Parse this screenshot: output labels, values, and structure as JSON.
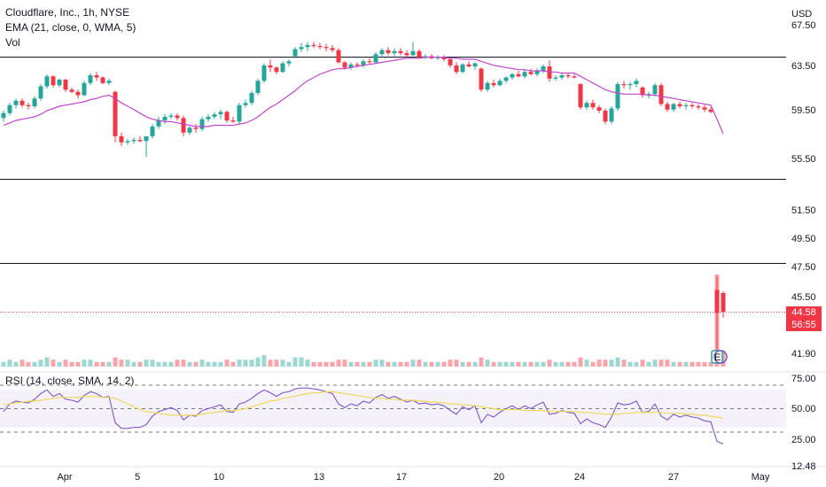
{
  "legend": {
    "title": "Cloudflare, Inc., 1h, NYSE",
    "ema": "EMA (21, close, 0, WMA, 5)",
    "vol": "Vol",
    "rsi": "RSI (14, close, SMA, 14, 2)"
  },
  "currency": "USD",
  "last_price": {
    "price": "44.58",
    "countdown": "56:55",
    "color": "#f23645"
  },
  "earnings_marker": "E",
  "colors": {
    "up": "#26a69a",
    "down": "#f23645",
    "ema": "#c147c7",
    "rsi": "#7e57c2",
    "rsi_ma": "#f0d95c",
    "rsi_band": "#ede7f6"
  },
  "chart_data": [
    {
      "type": "candlestick",
      "title": "Cloudflare, Inc., 1h, NYSE",
      "y_tick_labels": [
        "67.50",
        "63.50",
        "59.50",
        "55.50",
        "51.50",
        "49.50",
        "47.50",
        "45.50",
        "41.90"
      ],
      "x_tick_labels": [
        "Apr",
        "5",
        "10",
        "13",
        "17",
        "20",
        "24",
        "27",
        "May"
      ],
      "horizontal_lines": [
        64.5,
        54.0,
        47.8
      ],
      "ohlc": [
        [
          58.9,
          59.5,
          58.6,
          59.3
        ],
        [
          59.3,
          60.2,
          59.1,
          60.0
        ],
        [
          60.0,
          60.6,
          59.7,
          60.4
        ],
        [
          60.4,
          60.6,
          59.8,
          60.0
        ],
        [
          60.0,
          60.2,
          59.6,
          59.9
        ],
        [
          59.9,
          60.8,
          59.7,
          60.6
        ],
        [
          60.6,
          61.9,
          60.4,
          61.7
        ],
        [
          61.7,
          62.8,
          61.5,
          62.6
        ],
        [
          62.6,
          62.7,
          61.6,
          61.8
        ],
        [
          61.8,
          62.4,
          61.6,
          62.3
        ],
        [
          62.3,
          62.4,
          61.2,
          61.4
        ],
        [
          61.4,
          61.6,
          61.1,
          61.2
        ],
        [
          61.2,
          61.4,
          60.6,
          60.9
        ],
        [
          60.9,
          62.2,
          60.8,
          62.0
        ],
        [
          62.0,
          62.9,
          61.8,
          62.7
        ],
        [
          62.7,
          63.0,
          62.2,
          62.5
        ],
        [
          62.5,
          62.6,
          61.9,
          62.0
        ],
        [
          62.0,
          62.4,
          61.8,
          62.2
        ],
        [
          61.2,
          61.3,
          56.9,
          57.4
        ],
        [
          57.4,
          57.7,
          56.6,
          56.9
        ],
        [
          56.9,
          57.2,
          56.7,
          57.0
        ],
        [
          57.0,
          57.3,
          56.8,
          57.1
        ],
        [
          57.1,
          57.4,
          56.9,
          57.0
        ],
        [
          57.0,
          57.3,
          55.7,
          57.4
        ],
        [
          57.4,
          58.4,
          57.2,
          58.2
        ],
        [
          58.2,
          59.0,
          58.0,
          58.7
        ],
        [
          58.7,
          59.2,
          58.4,
          59.0
        ],
        [
          59.0,
          59.3,
          58.8,
          59.1
        ],
        [
          59.1,
          59.3,
          58.7,
          58.9
        ],
        [
          58.9,
          59.1,
          57.4,
          57.7
        ],
        [
          57.7,
          58.2,
          57.5,
          58.1
        ],
        [
          58.1,
          58.4,
          57.7,
          58.0
        ],
        [
          58.0,
          59.0,
          57.8,
          58.8
        ],
        [
          58.8,
          59.2,
          58.6,
          59.0
        ],
        [
          59.0,
          59.4,
          58.8,
          59.2
        ],
        [
          59.2,
          59.6,
          58.8,
          59.4
        ],
        [
          59.4,
          59.5,
          58.5,
          58.7
        ],
        [
          58.7,
          59.0,
          58.5,
          58.6
        ],
        [
          58.6,
          60.2,
          58.4,
          60.0
        ],
        [
          60.0,
          60.5,
          59.8,
          60.2
        ],
        [
          60.2,
          61.3,
          60.0,
          61.1
        ],
        [
          61.1,
          62.4,
          60.9,
          62.2
        ],
        [
          62.2,
          63.8,
          62.0,
          63.6
        ],
        [
          63.6,
          64.2,
          63.0,
          63.4
        ],
        [
          63.4,
          63.5,
          62.8,
          63.0
        ],
        [
          63.0,
          64.0,
          62.9,
          63.8
        ],
        [
          63.8,
          64.2,
          63.5,
          64.0
        ],
        [
          64.5,
          65.4,
          64.3,
          65.2
        ],
        [
          65.2,
          65.8,
          64.9,
          65.4
        ],
        [
          65.4,
          65.9,
          65.0,
          65.6
        ],
        [
          65.6,
          65.9,
          65.3,
          65.5
        ],
        [
          65.5,
          65.8,
          65.2,
          65.4
        ],
        [
          65.4,
          65.7,
          65.0,
          65.3
        ],
        [
          65.3,
          65.6,
          64.9,
          65.1
        ],
        [
          65.1,
          65.3,
          63.8,
          63.9
        ],
        [
          63.9,
          64.0,
          63.2,
          63.4
        ],
        [
          63.4,
          63.9,
          63.2,
          63.7
        ],
        [
          63.7,
          63.9,
          63.4,
          63.6
        ],
        [
          63.6,
          64.2,
          63.4,
          64.0
        ],
        [
          64.0,
          64.3,
          63.7,
          63.9
        ],
        [
          63.9,
          64.9,
          63.8,
          64.7
        ],
        [
          64.7,
          65.3,
          64.4,
          65.1
        ],
        [
          65.1,
          65.4,
          64.6,
          64.8
        ],
        [
          64.8,
          65.3,
          64.5,
          65.0
        ],
        [
          65.0,
          65.3,
          64.6,
          64.8
        ],
        [
          64.8,
          65.1,
          64.4,
          64.6
        ],
        [
          64.6,
          65.9,
          64.3,
          65.0
        ],
        [
          65.0,
          65.2,
          64.3,
          64.4
        ],
        [
          64.4,
          64.7,
          64.2,
          64.5
        ],
        [
          64.5,
          64.7,
          64.2,
          64.3
        ],
        [
          64.3,
          64.6,
          64.1,
          64.4
        ],
        [
          64.4,
          64.6,
          64.0,
          64.2
        ],
        [
          64.2,
          64.3,
          63.4,
          63.6
        ],
        [
          63.6,
          63.9,
          62.8,
          63.0
        ],
        [
          63.0,
          63.8,
          62.9,
          63.7
        ],
        [
          63.7,
          64.0,
          63.4,
          63.5
        ],
        [
          63.5,
          63.9,
          63.2,
          63.8
        ],
        [
          63.3,
          63.4,
          61.2,
          61.4
        ],
        [
          61.4,
          62.2,
          61.2,
          62.0
        ],
        [
          62.0,
          62.3,
          61.6,
          61.8
        ],
        [
          61.8,
          62.4,
          61.7,
          62.2
        ],
        [
          62.2,
          62.6,
          62.0,
          62.5
        ],
        [
          62.5,
          62.9,
          62.3,
          62.8
        ],
        [
          62.8,
          63.1,
          62.5,
          62.6
        ],
        [
          62.6,
          63.2,
          62.4,
          63.0
        ],
        [
          63.0,
          63.3,
          62.7,
          62.8
        ],
        [
          62.8,
          63.3,
          62.6,
          63.1
        ],
        [
          63.1,
          63.7,
          62.9,
          63.5
        ],
        [
          63.5,
          64.1,
          62.1,
          62.4
        ],
        [
          62.4,
          62.7,
          62.2,
          62.5
        ],
        [
          62.5,
          62.9,
          62.3,
          62.7
        ],
        [
          62.7,
          62.9,
          62.4,
          62.6
        ],
        [
          62.6,
          62.8,
          62.4,
          62.5
        ],
        [
          61.9,
          62.0,
          59.6,
          59.8
        ],
        [
          59.8,
          60.4,
          59.6,
          60.2
        ],
        [
          60.2,
          60.5,
          59.6,
          59.8
        ],
        [
          59.8,
          60.0,
          59.3,
          59.5
        ],
        [
          59.5,
          59.7,
          58.4,
          58.6
        ],
        [
          58.6,
          59.9,
          58.4,
          59.7
        ],
        [
          59.7,
          62.1,
          59.5,
          61.9
        ],
        [
          61.9,
          62.2,
          61.5,
          61.8
        ],
        [
          61.8,
          62.1,
          61.4,
          61.9
        ],
        [
          61.9,
          62.4,
          61.6,
          62.2
        ],
        [
          61.6,
          61.7,
          60.7,
          60.9
        ],
        [
          60.9,
          61.2,
          60.6,
          61.0
        ],
        [
          61.0,
          62.0,
          60.8,
          61.8
        ],
        [
          61.8,
          62.0,
          59.9,
          60.1
        ],
        [
          60.1,
          60.3,
          59.4,
          59.6
        ],
        [
          59.6,
          60.2,
          59.4,
          60.1
        ],
        [
          60.1,
          60.3,
          59.7,
          59.9
        ],
        [
          59.9,
          60.2,
          59.6,
          60.0
        ],
        [
          60.0,
          60.2,
          59.7,
          59.9
        ],
        [
          59.9,
          60.1,
          59.6,
          59.8
        ],
        [
          59.8,
          60.0,
          59.4,
          59.6
        ],
        [
          59.6,
          59.8,
          59.3,
          59.4
        ],
        [
          46.0,
          46.9,
          41.9,
          44.5
        ],
        [
          45.8,
          45.9,
          44.2,
          44.58
        ]
      ],
      "ema": [
        58.3,
        58.5,
        58.7,
        58.8,
        58.9,
        59.0,
        59.2,
        59.5,
        59.7,
        59.9,
        60.0,
        60.1,
        60.2,
        60.3,
        60.5,
        60.6,
        60.8,
        60.9,
        60.6,
        60.2,
        59.9,
        59.6,
        59.3,
        59.0,
        58.8,
        58.7,
        58.6,
        58.6,
        58.5,
        58.4,
        58.3,
        58.2,
        58.2,
        58.2,
        58.3,
        58.3,
        58.3,
        58.3,
        58.4,
        58.5,
        58.7,
        59.0,
        59.4,
        59.8,
        60.1,
        60.5,
        60.9,
        61.3,
        61.8,
        62.2,
        62.5,
        62.8,
        63.0,
        63.2,
        63.3,
        63.3,
        63.4,
        63.5,
        63.6,
        63.7,
        63.8,
        63.9,
        64.0,
        64.1,
        64.2,
        64.3,
        64.3,
        64.3,
        64.4,
        64.4,
        64.4,
        64.4,
        64.3,
        64.3,
        64.2,
        64.2,
        64.2,
        64.0,
        63.8,
        63.6,
        63.5,
        63.4,
        63.3,
        63.2,
        63.2,
        63.1,
        63.1,
        63.1,
        63.0,
        63.0,
        62.9,
        62.9,
        62.9,
        62.6,
        62.3,
        62.0,
        61.7,
        61.4,
        61.2,
        61.1,
        61.0,
        61.0,
        61.0,
        61.0,
        60.9,
        60.9,
        60.8,
        60.7,
        60.6,
        60.5,
        60.4,
        60.3,
        60.2,
        60.1,
        60.0,
        58.8,
        57.6
      ],
      "volume": [
        2,
        3,
        2,
        3,
        2,
        2,
        3,
        4,
        3,
        2,
        3,
        2,
        2,
        3,
        3,
        2,
        2,
        2,
        4,
        3,
        3,
        2,
        2,
        3,
        3,
        2,
        2,
        2,
        3,
        3,
        2,
        2,
        3,
        2,
        2,
        2,
        3,
        2,
        3,
        3,
        3,
        4,
        5,
        3,
        3,
        3,
        2,
        4,
        4,
        3,
        2,
        2,
        2,
        2,
        3,
        3,
        2,
        2,
        2,
        2,
        3,
        3,
        2,
        2,
        2,
        2,
        3,
        3,
        2,
        2,
        2,
        2,
        3,
        3,
        2,
        2,
        2,
        4,
        3,
        2,
        2,
        2,
        2,
        2,
        2,
        2,
        2,
        2,
        3,
        2,
        2,
        2,
        2,
        4,
        3,
        2,
        3,
        3,
        3,
        4,
        3,
        2,
        2,
        3,
        2,
        3,
        3,
        3,
        2,
        2,
        2,
        2,
        2,
        2,
        2,
        40,
        7
      ],
      "rsi_tick_labels": [
        "75.00",
        "50.00",
        "25.00"
      ],
      "rsi_tick_values": [
        75,
        50,
        25
      ],
      "rsi_last_label": "12.48",
      "rsi_band": [
        30,
        70
      ],
      "rsi": [
        47,
        55,
        58,
        57,
        56,
        60,
        66,
        70,
        63,
        66,
        60,
        59,
        57,
        64,
        68,
        66,
        62,
        63,
        35,
        29,
        29,
        30,
        30,
        33,
        42,
        47,
        49,
        51,
        48,
        38,
        43,
        42,
        48,
        50,
        52,
        54,
        47,
        46,
        55,
        57,
        61,
        66,
        70,
        67,
        63,
        67,
        68,
        71,
        72,
        72,
        71,
        70,
        68,
        66,
        55,
        51,
        55,
        53,
        58,
        56,
        62,
        65,
        61,
        63,
        60,
        57,
        59,
        55,
        56,
        54,
        55,
        53,
        48,
        44,
        52,
        49,
        53,
        35,
        44,
        41,
        46,
        50,
        53,
        49,
        53,
        50,
        54,
        57,
        44,
        45,
        48,
        46,
        45,
        34,
        39,
        35,
        33,
        30,
        41,
        56,
        54,
        55,
        58,
        46,
        47,
        55,
        42,
        38,
        44,
        41,
        43,
        41,
        40,
        37,
        36,
        15,
        12.48
      ],
      "rsi_ma": [
        54,
        55,
        56,
        57,
        58,
        58,
        59,
        60,
        61,
        62,
        62,
        62,
        62,
        63,
        63,
        63,
        62,
        62,
        61,
        58,
        55,
        52,
        49,
        47,
        46,
        45,
        44,
        43,
        43,
        43,
        43,
        43,
        44,
        45,
        46,
        47,
        48,
        48,
        49,
        50,
        52,
        54,
        56,
        58,
        59,
        61,
        62,
        63,
        65,
        66,
        67,
        67,
        68,
        68,
        67,
        66,
        65,
        64,
        63,
        62,
        61,
        61,
        60,
        60,
        59,
        59,
        59,
        58,
        58,
        57,
        57,
        56,
        55,
        55,
        54,
        54,
        53,
        52,
        51,
        50,
        49,
        49,
        49,
        49,
        48,
        48,
        48,
        48,
        47,
        47,
        47,
        47,
        47,
        46,
        46,
        45,
        45,
        44,
        44,
        44,
        45,
        45,
        46,
        46,
        46,
        46,
        46,
        45,
        45,
        45,
        44,
        44,
        43,
        43,
        42,
        41,
        40
      ]
    }
  ]
}
